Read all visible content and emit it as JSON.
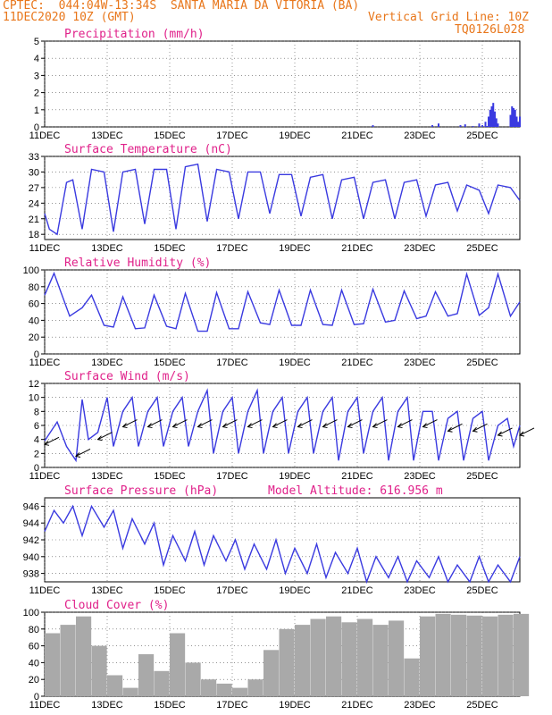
{
  "header": {
    "line1": "CPTEC:  044:04W-13:34S  SANTA MARIA DA VITORIA (BA)",
    "line2": "11DEC2020 10Z (GMT)",
    "grid_note": "Vertical Grid Line: 10Z",
    "code": "TQ0126L028"
  },
  "colors": {
    "header": "#e8761a",
    "title": "#e0218a",
    "line": "#3a3ae0",
    "cloud": "#a9a9a9"
  },
  "x_labels": [
    "11DEC",
    "13DEC",
    "15DEC",
    "17DEC",
    "19DEC",
    "21DEC",
    "23DEC",
    "25DEC"
  ],
  "chart_data": [
    {
      "type": "bar",
      "title": "Precipitation (mm/h)",
      "ylim": [
        0,
        5
      ],
      "yticks": [
        "0",
        "1",
        "2",
        "3",
        "4",
        "5"
      ],
      "x_range_days": [
        0,
        15.2
      ],
      "bars": [
        [
          10.5,
          0.1
        ],
        [
          12.4,
          0.1
        ],
        [
          12.6,
          0.2
        ],
        [
          13.3,
          0.1
        ],
        [
          13.45,
          0.15
        ],
        [
          13.7,
          0.05
        ],
        [
          13.9,
          0.2
        ],
        [
          14.0,
          0.1
        ],
        [
          14.1,
          0.3
        ],
        [
          14.15,
          0.05
        ],
        [
          14.2,
          0.6
        ],
        [
          14.25,
          1.0
        ],
        [
          14.3,
          1.2
        ],
        [
          14.35,
          1.4
        ],
        [
          14.4,
          0.9
        ],
        [
          14.45,
          0.5
        ],
        [
          14.5,
          0.2
        ],
        [
          14.9,
          0.7
        ],
        [
          14.95,
          1.2
        ],
        [
          15.0,
          1.1
        ],
        [
          15.05,
          1.0
        ],
        [
          15.1,
          0.6
        ],
        [
          15.15,
          0.3
        ],
        [
          15.2,
          0.6
        ]
      ]
    },
    {
      "type": "line",
      "title": "Surface Temperature (nC)",
      "ylim": [
        17,
        33
      ],
      "yticks": [
        "18",
        "21",
        "24",
        "27",
        "30",
        "33"
      ],
      "x": [
        0,
        0.15,
        0.4,
        0.7,
        0.9,
        1.2,
        1.5,
        1.9,
        2.2,
        2.5,
        2.9,
        3.2,
        3.5,
        3.9,
        4.2,
        4.5,
        4.9,
        5.2,
        5.5,
        5.9,
        6.2,
        6.5,
        6.9,
        7.2,
        7.5,
        7.9,
        8.2,
        8.5,
        8.9,
        9.2,
        9.5,
        9.9,
        10.2,
        10.5,
        10.9,
        11.2,
        11.5,
        11.9,
        12.2,
        12.5,
        12.9,
        13.2,
        13.5,
        13.9,
        14.2,
        14.5,
        14.9,
        15.2
      ],
      "y": [
        22,
        19,
        18,
        28,
        28.5,
        19,
        30.5,
        30,
        18.5,
        30,
        30.5,
        20,
        30.5,
        30.5,
        19,
        31,
        31.5,
        20.5,
        30.5,
        30,
        21,
        30,
        30,
        22,
        29.5,
        29.5,
        21.5,
        29,
        29.5,
        21,
        28.5,
        29,
        21,
        28,
        28.5,
        21,
        28,
        28.5,
        21.5,
        27.5,
        28,
        22.5,
        27.5,
        26.5,
        22,
        27.5,
        27,
        24.5
      ]
    },
    {
      "type": "line",
      "title": "Relative Humidity (%)",
      "ylim": [
        0,
        100
      ],
      "yticks": [
        "0",
        "20",
        "40",
        "60",
        "80",
        "100"
      ],
      "x": [
        0,
        0.3,
        0.8,
        1.2,
        1.5,
        1.9,
        2.2,
        2.5,
        2.9,
        3.2,
        3.5,
        3.9,
        4.2,
        4.5,
        4.9,
        5.2,
        5.5,
        5.9,
        6.2,
        6.5,
        6.9,
        7.2,
        7.5,
        7.9,
        8.2,
        8.5,
        8.9,
        9.2,
        9.5,
        9.9,
        10.2,
        10.5,
        10.9,
        11.2,
        11.5,
        11.9,
        12.2,
        12.5,
        12.9,
        13.2,
        13.5,
        13.9,
        14.2,
        14.5,
        14.9,
        15.2
      ],
      "y": [
        70,
        96,
        45,
        55,
        70,
        34,
        32,
        68,
        30,
        31,
        70,
        33,
        30,
        72,
        27,
        27,
        73,
        30,
        30,
        74,
        37,
        35,
        76,
        34,
        34,
        76,
        35,
        34,
        76,
        35,
        36,
        77,
        38,
        40,
        75,
        42,
        45,
        74,
        45,
        48,
        95,
        46,
        55,
        95,
        45,
        62
      ]
    },
    {
      "type": "line",
      "title": "Surface Wind (m/s)",
      "ylim": [
        0,
        12
      ],
      "yticks": [
        "0",
        "2",
        "4",
        "6",
        "8",
        "10",
        "12"
      ],
      "x": [
        0,
        0.4,
        0.7,
        1.0,
        1.2,
        1.4,
        1.7,
        2.0,
        2.2,
        2.5,
        2.8,
        3.0,
        3.3,
        3.6,
        3.8,
        4.1,
        4.4,
        4.6,
        4.9,
        5.2,
        5.4,
        5.7,
        6.0,
        6.2,
        6.5,
        6.8,
        7.0,
        7.3,
        7.6,
        7.8,
        8.1,
        8.4,
        8.6,
        8.9,
        9.2,
        9.4,
        9.7,
        10.0,
        10.2,
        10.5,
        10.8,
        11.0,
        11.3,
        11.6,
        11.8,
        12.1,
        12.4,
        12.6,
        12.9,
        13.2,
        13.4,
        13.7,
        14.0,
        14.2,
        14.5,
        14.8,
        15.0,
        15.2
      ],
      "y": [
        3.8,
        6.5,
        3,
        1,
        9.7,
        4,
        5,
        10,
        3,
        8,
        10,
        3,
        8,
        10,
        3,
        8,
        10,
        3,
        8,
        11,
        2,
        8,
        10,
        2,
        8,
        11,
        2,
        8,
        10,
        2,
        8,
        10,
        2,
        8,
        10,
        1,
        8,
        10,
        2,
        8,
        10,
        1,
        8,
        10,
        1,
        8,
        8,
        1,
        7,
        8,
        1,
        7,
        8,
        1,
        6,
        7,
        3,
        6
      ]
    },
    {
      "type": "line",
      "title": "Surface Pressure (hPa)",
      "subtitle": "Model Altitude: 616.956  m",
      "ylim": [
        937,
        947
      ],
      "yticks": [
        "938",
        "940",
        "942",
        "944",
        "946"
      ],
      "x": [
        0,
        0.3,
        0.6,
        0.9,
        1.2,
        1.5,
        1.9,
        2.2,
        2.5,
        2.8,
        3.2,
        3.5,
        3.8,
        4.1,
        4.5,
        4.8,
        5.1,
        5.4,
        5.8,
        6.1,
        6.4,
        6.7,
        7.1,
        7.4,
        7.7,
        8.0,
        8.4,
        8.7,
        9.0,
        9.3,
        9.7,
        10.0,
        10.3,
        10.6,
        11.0,
        11.3,
        11.6,
        11.9,
        12.3,
        12.6,
        12.9,
        13.2,
        13.6,
        13.9,
        14.2,
        14.5,
        14.9,
        15.2
      ],
      "y": [
        943,
        945.5,
        944,
        946,
        942.5,
        946,
        943.5,
        945.5,
        941,
        944.5,
        941.5,
        944,
        939,
        942.5,
        939.5,
        943,
        939,
        942.5,
        939.5,
        942,
        938.5,
        941.5,
        938.5,
        942,
        938,
        941,
        938,
        941.5,
        937.5,
        940.5,
        938,
        941,
        937,
        940,
        937.5,
        940,
        937,
        939.5,
        937.5,
        940,
        937,
        939,
        937,
        940,
        937,
        939,
        937,
        940
      ]
    },
    {
      "type": "bar",
      "title": "Cloud Cover (%)",
      "ylim": [
        0,
        100
      ],
      "yticks": [
        "0",
        "20",
        "40",
        "60",
        "80",
        "100"
      ],
      "x": [
        0,
        0.5,
        1.0,
        1.5,
        2.0,
        2.5,
        3.0,
        3.5,
        4.0,
        4.5,
        5.0,
        5.5,
        6.0,
        6.5,
        7.0,
        7.5,
        8.0,
        8.5,
        9.0,
        9.5,
        10.0,
        10.5,
        11.0,
        11.5,
        12.0,
        12.5,
        13.0,
        13.5,
        14.0,
        14.5,
        15.0
      ],
      "y": [
        75,
        85,
        95,
        60,
        25,
        10,
        50,
        30,
        75,
        40,
        20,
        15,
        10,
        20,
        55,
        80,
        85,
        92,
        95,
        88,
        92,
        85,
        90,
        45,
        95,
        98,
        97,
        96,
        95,
        97,
        98
      ]
    }
  ]
}
